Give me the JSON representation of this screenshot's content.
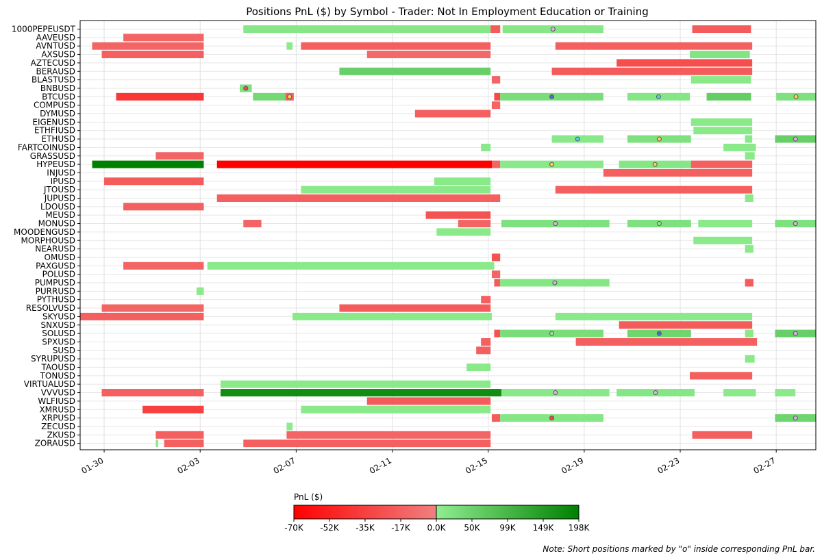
{
  "chart_data": {
    "type": "gantt",
    "title": "Positions PnL ($) by Symbol - Trader: Not In Employment Education or Training",
    "xlabel": "",
    "ylabel": "",
    "x_tick_labels": [
      "01-30",
      "02-03",
      "02-07",
      "02-11",
      "02-15",
      "02-19",
      "02-23",
      "02-27"
    ],
    "x_ticks_day": [
      0,
      4,
      8,
      12,
      16,
      20,
      24,
      28
    ],
    "xlim_day": [
      -1.0,
      29.65
    ],
    "day_origin": "01-30",
    "grid": true,
    "colorbar": {
      "label": "PnL ($)",
      "ticks": [
        "-70K",
        "-52K",
        "-35K",
        "-17K",
        "0.0K",
        "50K",
        "99K",
        "149K",
        "198K"
      ],
      "min": -70000,
      "max": 198000,
      "neg_colors": [
        "#ff0000",
        "#f08080"
      ],
      "pos_colors": [
        "#90ee90",
        "#008000"
      ]
    },
    "note": "Note: Short positions marked by \"o\" inside corresponding PnL bar.",
    "symbols": [
      "1000PEPEUSDT",
      "AAVEUSD",
      "AVNTUSD",
      "AXSUSD",
      "AZTECUSD",
      "BERAUSD",
      "BLASTUSD",
      "BNBUSD",
      "BTCUSD",
      "COMPUSD",
      "DYMUSD",
      "EIGENUSD",
      "ETHFIUSD",
      "ETHUSD",
      "FARTCOINUSD",
      "GRASSUSD",
      "HYPEUSD",
      "INJUSD",
      "IPUSD",
      "JTOUSD",
      "JUPUSD",
      "LDOUSD",
      "MEUSD",
      "MONUSD",
      "MOODENGUSD",
      "MORPHOUSD",
      "NEARUSD",
      "OMUSD",
      "PAXGUSD",
      "POLUSD",
      "PUMPUSD",
      "PURRUSD",
      "PYTHUSD",
      "RESOLVUSD",
      "SKYUSD",
      "SNXUSD",
      "SOLUSD",
      "SPXUSD",
      "SUSD",
      "SYRUPUSD",
      "TAOUSD",
      "TONUSD",
      "VIRTUALUSD",
      "VVVUSD",
      "WLFIUSD",
      "XMRUSD",
      "XRPUSD",
      "ZECUSD",
      "ZKUSD",
      "ZORAUSD"
    ],
    "positions": [
      {
        "symbol": "1000PEPEUSDT",
        "start": 5.8,
        "end": 16.1,
        "pnl": 12000,
        "short": false
      },
      {
        "symbol": "1000PEPEUSDT",
        "start": 16.1,
        "end": 16.5,
        "pnl": -20000,
        "short": false
      },
      {
        "symbol": "1000PEPEUSDT",
        "start": 16.6,
        "end": 20.8,
        "pnl": 12000,
        "short": true,
        "marker": "#d8b4e2"
      },
      {
        "symbol": "1000PEPEUSDT",
        "start": 24.5,
        "end": 26.95,
        "pnl": -20000,
        "short": false
      },
      {
        "symbol": "AAVEUSD",
        "start": 0.8,
        "end": 4.15,
        "pnl": -15000,
        "short": false
      },
      {
        "symbol": "AVNTUSD",
        "start": -0.5,
        "end": 4.15,
        "pnl": -15000,
        "short": false
      },
      {
        "symbol": "AVNTUSD",
        "start": 7.6,
        "end": 7.85,
        "pnl": 5000,
        "short": false
      },
      {
        "symbol": "AVNTUSD",
        "start": 8.2,
        "end": 16.1,
        "pnl": -18000,
        "short": false
      },
      {
        "symbol": "AVNTUSD",
        "start": 18.8,
        "end": 27.0,
        "pnl": -18000,
        "short": false
      },
      {
        "symbol": "AXSUSD",
        "start": -0.1,
        "end": 4.15,
        "pnl": -18000,
        "short": false
      },
      {
        "symbol": "AXSUSD",
        "start": 10.95,
        "end": 16.1,
        "pnl": -13000,
        "short": false
      },
      {
        "symbol": "AXSUSD",
        "start": 24.4,
        "end": 26.9,
        "pnl": 18000,
        "short": false
      },
      {
        "symbol": "AZTECUSD",
        "start": 21.35,
        "end": 27.0,
        "pnl": -28000,
        "short": false
      },
      {
        "symbol": "BERAUSD",
        "start": 9.8,
        "end": 16.1,
        "pnl": 55000,
        "short": false
      },
      {
        "symbol": "BERAUSD",
        "start": 18.65,
        "end": 27.0,
        "pnl": -20000,
        "short": false
      },
      {
        "symbol": "BLASTUSD",
        "start": 16.15,
        "end": 16.5,
        "pnl": -15000,
        "short": false
      },
      {
        "symbol": "BLASTUSD",
        "start": 24.45,
        "end": 26.95,
        "pnl": 8000,
        "short": false
      },
      {
        "symbol": "BNBUSD",
        "start": 5.65,
        "end": 6.15,
        "pnl": 25000,
        "short": true,
        "marker": "#ff4444"
      },
      {
        "symbol": "BTCUSD",
        "start": 0.5,
        "end": 4.15,
        "pnl": -40000,
        "short": false
      },
      {
        "symbol": "BTCUSD",
        "start": 6.2,
        "end": 7.55,
        "pnl": 38000,
        "short": false
      },
      {
        "symbol": "BTCUSD",
        "start": 7.55,
        "end": 7.9,
        "pnl": -18000,
        "short": true,
        "marker": "#ffd24a"
      },
      {
        "symbol": "BTCUSD",
        "start": 16.25,
        "end": 16.5,
        "pnl": -30000,
        "short": false
      },
      {
        "symbol": "BTCUSD",
        "start": 16.5,
        "end": 20.8,
        "pnl": 30000,
        "short": true,
        "marker": "#4a6fd0"
      },
      {
        "symbol": "BTCUSD",
        "start": 21.8,
        "end": 24.4,
        "pnl": 15000,
        "short": true,
        "marker": "#40d8e8"
      },
      {
        "symbol": "BTCUSD",
        "start": 25.1,
        "end": 26.95,
        "pnl": 60000,
        "short": false
      },
      {
        "symbol": "BTCUSD",
        "start": 28.0,
        "end": 29.8,
        "pnl": 25000,
        "short": true,
        "marker": "#ffd24a"
      },
      {
        "symbol": "COMPUSD",
        "start": 16.15,
        "end": 16.5,
        "pnl": -15000,
        "short": false
      },
      {
        "symbol": "DYMUSD",
        "start": 12.95,
        "end": 16.1,
        "pnl": -18000,
        "short": false
      },
      {
        "symbol": "EIGENUSD",
        "start": 24.45,
        "end": 27.0,
        "pnl": 8000,
        "short": false
      },
      {
        "symbol": "ETHFIUSD",
        "start": 24.55,
        "end": 27.0,
        "pnl": 8000,
        "short": false
      },
      {
        "symbol": "ETHUSD",
        "start": 18.65,
        "end": 20.8,
        "pnl": 10000,
        "short": true,
        "marker": "#40d8e8"
      },
      {
        "symbol": "ETHUSD",
        "start": 21.8,
        "end": 24.45,
        "pnl": 25000,
        "short": true,
        "marker": "#ffd24a"
      },
      {
        "symbol": "ETHUSD",
        "start": 26.7,
        "end": 27.0,
        "pnl": 10000,
        "short": false
      },
      {
        "symbol": "ETHUSD",
        "start": 27.95,
        "end": 29.8,
        "pnl": 55000,
        "short": true,
        "marker": "#d8b4e2"
      },
      {
        "symbol": "FARTCOINUSD",
        "start": 15.7,
        "end": 16.1,
        "pnl": 10000,
        "short": false
      },
      {
        "symbol": "FARTCOINUSD",
        "start": 25.8,
        "end": 27.15,
        "pnl": 8000,
        "short": false
      },
      {
        "symbol": "GRASSUSD",
        "start": 2.15,
        "end": 4.15,
        "pnl": -15000,
        "short": false
      },
      {
        "symbol": "GRASSUSD",
        "start": 26.7,
        "end": 27.1,
        "pnl": 8000,
        "short": false
      },
      {
        "symbol": "HYPEUSD",
        "start": 16.1,
        "end": 16.5,
        "pnl": -15000,
        "short": false
      },
      {
        "symbol": "HYPEUSD",
        "start": -0.5,
        "end": 4.15,
        "pnl": 198000,
        "short": false
      },
      {
        "symbol": "HYPEUSD",
        "start": 4.7,
        "end": 16.15,
        "pnl": -70000,
        "short": false
      },
      {
        "symbol": "HYPEUSD",
        "start": 16.5,
        "end": 20.8,
        "pnl": 10000,
        "short": true,
        "marker": "#ffd24a"
      },
      {
        "symbol": "HYPEUSD",
        "start": 21.45,
        "end": 24.45,
        "pnl": 15000,
        "short": true,
        "marker": "#ffd24a"
      },
      {
        "symbol": "HYPEUSD",
        "start": 24.45,
        "end": 27.0,
        "pnl": -18000,
        "short": false
      },
      {
        "symbol": "INJUSD",
        "start": 20.8,
        "end": 27.0,
        "pnl": -18000,
        "short": false
      },
      {
        "symbol": "IPUSD",
        "start": 0.0,
        "end": 4.15,
        "pnl": -20000,
        "short": false
      },
      {
        "symbol": "IPUSD",
        "start": 13.75,
        "end": 16.1,
        "pnl": 8000,
        "short": false
      },
      {
        "symbol": "JTOUSD",
        "start": 8.2,
        "end": 16.1,
        "pnl": 8000,
        "short": false
      },
      {
        "symbol": "JTOUSD",
        "start": 18.8,
        "end": 27.0,
        "pnl": -18000,
        "short": false
      },
      {
        "symbol": "JUPUSD",
        "start": 4.7,
        "end": 16.5,
        "pnl": -18000,
        "short": false
      },
      {
        "symbol": "JUPUSD",
        "start": 26.7,
        "end": 27.05,
        "pnl": 8000,
        "short": false
      },
      {
        "symbol": "LDOUSD",
        "start": 0.8,
        "end": 4.15,
        "pnl": -18000,
        "short": false
      },
      {
        "symbol": "MEUSD",
        "start": 13.4,
        "end": 16.1,
        "pnl": -25000,
        "short": false
      },
      {
        "symbol": "MONUSD",
        "start": 5.8,
        "end": 6.55,
        "pnl": -15000,
        "short": false
      },
      {
        "symbol": "MONUSD",
        "start": 14.75,
        "end": 16.1,
        "pnl": -15000,
        "short": false
      },
      {
        "symbol": "MONUSD",
        "start": 16.55,
        "end": 21.05,
        "pnl": 25000,
        "short": true,
        "marker": "#d8b4e2"
      },
      {
        "symbol": "MONUSD",
        "start": 21.8,
        "end": 24.45,
        "pnl": 25000,
        "short": true,
        "marker": "#90ee90"
      },
      {
        "symbol": "MONUSD",
        "start": 24.75,
        "end": 27.0,
        "pnl": 8000,
        "short": false
      },
      {
        "symbol": "MONUSD",
        "start": 27.95,
        "end": 30.0,
        "pnl": 25000,
        "short": true,
        "marker": "#d8b4e2"
      },
      {
        "symbol": "MOODENGUSD",
        "start": 13.85,
        "end": 16.1,
        "pnl": 8000,
        "short": false
      },
      {
        "symbol": "MORPHOUSD",
        "start": 24.55,
        "end": 27.0,
        "pnl": 8000,
        "short": false
      },
      {
        "symbol": "NEARUSD",
        "start": 26.7,
        "end": 27.05,
        "pnl": 8000,
        "short": false
      },
      {
        "symbol": "OMUSD",
        "start": 16.15,
        "end": 16.5,
        "pnl": -25000,
        "short": false
      },
      {
        "symbol": "PAXGUSD",
        "start": 0.8,
        "end": 4.15,
        "pnl": -15000,
        "short": false
      },
      {
        "symbol": "PAXGUSD",
        "start": 4.3,
        "end": 16.25,
        "pnl": 8000,
        "short": false
      },
      {
        "symbol": "POLUSD",
        "start": 16.15,
        "end": 16.5,
        "pnl": -15000,
        "short": false
      },
      {
        "symbol": "PUMPUSD",
        "start": 16.25,
        "end": 16.5,
        "pnl": -20000,
        "short": false
      },
      {
        "symbol": "PUMPUSD",
        "start": 16.5,
        "end": 21.05,
        "pnl": 15000,
        "short": true,
        "marker": "#d8b4e2"
      },
      {
        "symbol": "PUMPUSD",
        "start": 26.7,
        "end": 27.05,
        "pnl": -20000,
        "short": false
      },
      {
        "symbol": "PURRUSD",
        "start": 3.85,
        "end": 4.15,
        "pnl": 8000,
        "short": false
      },
      {
        "symbol": "PYTHUSD",
        "start": 15.7,
        "end": 16.1,
        "pnl": -18000,
        "short": false
      },
      {
        "symbol": "RESOLVUSD",
        "start": -0.1,
        "end": 4.15,
        "pnl": -15000,
        "short": false
      },
      {
        "symbol": "RESOLVUSD",
        "start": 9.8,
        "end": 16.1,
        "pnl": -20000,
        "short": false
      },
      {
        "symbol": "SKYUSD",
        "start": -1.0,
        "end": 4.15,
        "pnl": -18000,
        "short": false
      },
      {
        "symbol": "SKYUSD",
        "start": 7.85,
        "end": 16.15,
        "pnl": 8000,
        "short": false
      },
      {
        "symbol": "SKYUSD",
        "start": 18.8,
        "end": 27.0,
        "pnl": 8000,
        "short": false
      },
      {
        "symbol": "SNXUSD",
        "start": 21.45,
        "end": 27.0,
        "pnl": -20000,
        "short": false
      },
      {
        "symbol": "SOLUSD",
        "start": 16.25,
        "end": 16.5,
        "pnl": -25000,
        "short": false
      },
      {
        "symbol": "SOLUSD",
        "start": 16.5,
        "end": 20.8,
        "pnl": 30000,
        "short": true,
        "marker": "#90ee90"
      },
      {
        "symbol": "SOLUSD",
        "start": 21.8,
        "end": 24.45,
        "pnl": 45000,
        "short": true,
        "marker": "#4a6fd0"
      },
      {
        "symbol": "SOLUSD",
        "start": 26.7,
        "end": 27.05,
        "pnl": 8000,
        "short": false
      },
      {
        "symbol": "SOLUSD",
        "start": 27.95,
        "end": 29.8,
        "pnl": 55000,
        "short": true,
        "marker": "#d8b4e2"
      },
      {
        "symbol": "SPXUSD",
        "start": 15.7,
        "end": 16.1,
        "pnl": -18000,
        "short": false
      },
      {
        "symbol": "SPXUSD",
        "start": 19.65,
        "end": 27.2,
        "pnl": -18000,
        "short": false
      },
      {
        "symbol": "SUSD",
        "start": 15.5,
        "end": 16.1,
        "pnl": -18000,
        "short": false
      },
      {
        "symbol": "SYRUPUSD",
        "start": 26.7,
        "end": 27.1,
        "pnl": 8000,
        "short": false
      },
      {
        "symbol": "TAOUSD",
        "start": 15.1,
        "end": 16.1,
        "pnl": 8000,
        "short": false
      },
      {
        "symbol": "TONUSD",
        "start": 24.4,
        "end": 27.0,
        "pnl": -18000,
        "short": false
      },
      {
        "symbol": "VIRTUALUSD",
        "start": 4.85,
        "end": 16.1,
        "pnl": 8000,
        "short": false
      },
      {
        "symbol": "VVVUSD",
        "start": -0.1,
        "end": 4.15,
        "pnl": -18000,
        "short": false
      },
      {
        "symbol": "VVVUSD",
        "start": 4.85,
        "end": 16.55,
        "pnl": 175000,
        "short": false
      },
      {
        "symbol": "VVVUSD",
        "start": 16.55,
        "end": 21.05,
        "pnl": 10000,
        "short": true,
        "marker": "#d8b4e2"
      },
      {
        "symbol": "VVVUSD",
        "start": 21.35,
        "end": 24.6,
        "pnl": 15000,
        "short": true,
        "marker": "#d8b4e2"
      },
      {
        "symbol": "VVVUSD",
        "start": 25.8,
        "end": 27.15,
        "pnl": 8000,
        "short": false
      },
      {
        "symbol": "VVVUSD",
        "start": 27.95,
        "end": 28.8,
        "pnl": 8000,
        "short": false
      },
      {
        "symbol": "WLFIUSD",
        "start": 10.95,
        "end": 16.1,
        "pnl": -20000,
        "short": false
      },
      {
        "symbol": "XMRUSD",
        "start": 1.6,
        "end": 4.15,
        "pnl": -35000,
        "short": false
      },
      {
        "symbol": "XMRUSD",
        "start": 8.2,
        "end": 16.1,
        "pnl": 8000,
        "short": false
      },
      {
        "symbol": "XRPUSD",
        "start": 16.15,
        "end": 16.5,
        "pnl": -20000,
        "short": false
      },
      {
        "symbol": "XRPUSD",
        "start": 16.5,
        "end": 20.8,
        "pnl": 15000,
        "short": true,
        "marker": "#ff4444"
      },
      {
        "symbol": "XRPUSD",
        "start": 27.95,
        "end": 29.8,
        "pnl": 45000,
        "short": true,
        "marker": "#d8b4e2"
      },
      {
        "symbol": "ZECUSD",
        "start": 7.6,
        "end": 7.85,
        "pnl": 5000,
        "short": false
      },
      {
        "symbol": "ZKUSD",
        "start": 2.15,
        "end": 4.15,
        "pnl": -18000,
        "short": false
      },
      {
        "symbol": "ZKUSD",
        "start": 7.6,
        "end": 16.1,
        "pnl": -15000,
        "short": false
      },
      {
        "symbol": "ZKUSD",
        "start": 24.5,
        "end": 27.0,
        "pnl": -18000,
        "short": false
      },
      {
        "symbol": "ZORAUSD",
        "start": 2.15,
        "end": 2.25,
        "pnl": 8000,
        "short": false
      },
      {
        "symbol": "ZORAUSD",
        "start": 2.5,
        "end": 4.15,
        "pnl": -18000,
        "short": false
      },
      {
        "symbol": "ZORAUSD",
        "start": 5.8,
        "end": 16.1,
        "pnl": -18000,
        "short": false
      }
    ]
  }
}
